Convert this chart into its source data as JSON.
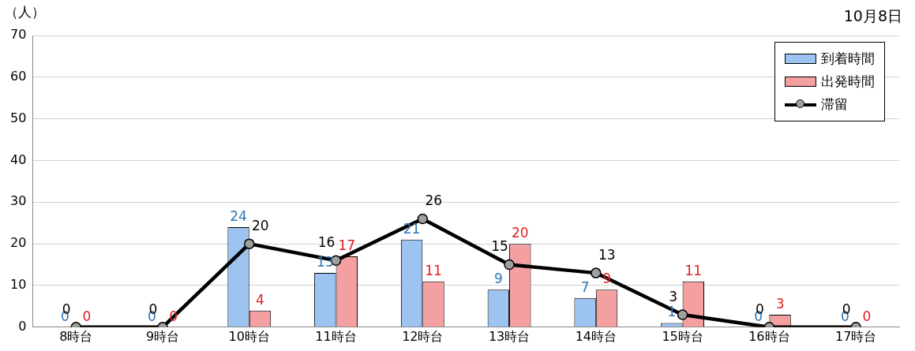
{
  "chart_data": {
    "type": "bar",
    "title": "10月8日",
    "ylabel": "（人）",
    "categories": [
      "8時台",
      "9時台",
      "10時台",
      "11時台",
      "12時台",
      "13時台",
      "14時台",
      "15時台",
      "16時台",
      "17時台"
    ],
    "series": [
      {
        "name": "到着時間",
        "color": "#9dc3f0",
        "values": [
          0,
          0,
          24,
          13,
          21,
          9,
          7,
          1,
          0,
          0
        ]
      },
      {
        "name": "出発時間",
        "color": "#f4a0a0",
        "values": [
          0,
          0,
          4,
          17,
          11,
          20,
          9,
          11,
          3,
          0
        ]
      },
      {
        "name": "滞留",
        "type": "line",
        "color": "#000000",
        "values": [
          0,
          0,
          20,
          16,
          26,
          15,
          13,
          3,
          0,
          0
        ]
      }
    ],
    "ylim": [
      0,
      70
    ],
    "yticks": [
      0,
      10,
      20,
      30,
      40,
      50,
      60,
      70
    ],
    "grid": "y",
    "legend": "top right",
    "marker": "circle",
    "line_style": "solid",
    "data_labels": true
  }
}
